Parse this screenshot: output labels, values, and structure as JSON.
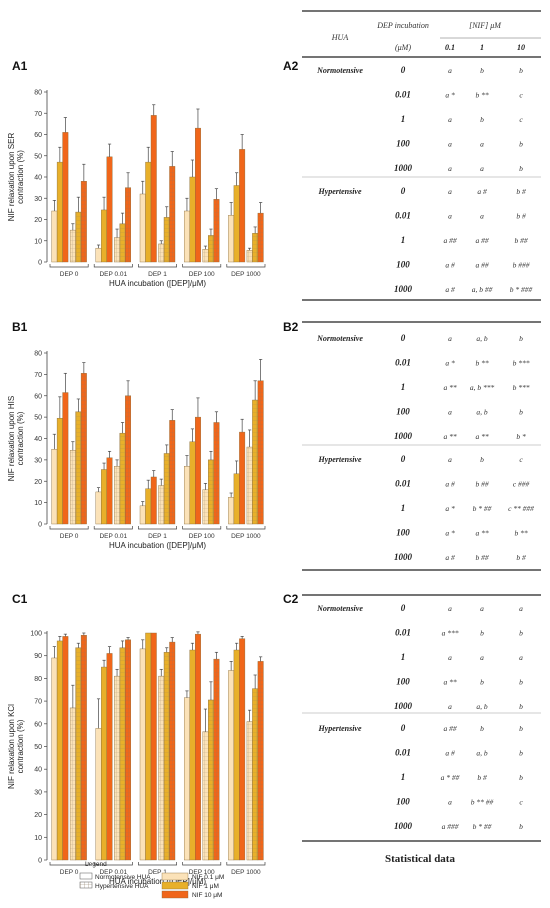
{
  "charts": [
    {
      "panel": "A1",
      "chart_data": {
        "type": "bar",
        "title": "",
        "ylabel": "NIF relaxation upon SER contraction (%)",
        "ylabel_lines": [
          "NIF relaxation upon SER",
          "contraction (%)"
        ],
        "xlabel": "HUA incubation ([DEP]/μM)",
        "categories": [
          "DEP 0",
          "DEP 0.01",
          "DEP 1",
          "DEP 100",
          "DEP 1000"
        ],
        "ylim": [
          0,
          80
        ],
        "yticks": [
          0,
          10,
          20,
          30,
          40,
          50,
          60,
          70,
          80
        ],
        "series": [
          {
            "group": "Normotensive HUA",
            "nif": "NIF 0.1 μM",
            "values": [
              24,
              6.5,
              32,
              24,
              22
            ],
            "errors": [
              5,
              1.5,
              6,
              6,
              6
            ]
          },
          {
            "group": "Normotensive HUA",
            "nif": "NIF 1 μM",
            "values": [
              47,
              24.5,
              47,
              40,
              36
            ],
            "errors": [
              7,
              6,
              7,
              8,
              6
            ]
          },
          {
            "group": "Normotensive HUA",
            "nif": "NIF 10 μM",
            "values": [
              61,
              49.5,
              69,
              63,
              53
            ],
            "errors": [
              7,
              6,
              5,
              9,
              7
            ]
          },
          {
            "group": "Hypertensive HUA",
            "nif": "NIF 0.1 μM",
            "values": [
              15,
              11.5,
              8.5,
              6,
              5.5
            ],
            "errors": [
              3,
              4,
              1.5,
              1.5,
              1
            ]
          },
          {
            "group": "Hypertensive HUA",
            "nif": "NIF 1 μM",
            "values": [
              23.5,
              18,
              21,
              12.5,
              13.5
            ],
            "errors": [
              7,
              5,
              5,
              3,
              3
            ]
          },
          {
            "group": "Hypertensive HUA",
            "nif": "NIF 10 μM",
            "values": [
              38,
              35,
              45,
              29.5,
              23
            ],
            "errors": [
              8,
              7,
              7,
              5,
              5
            ]
          }
        ]
      }
    },
    {
      "panel": "B1",
      "chart_data": {
        "type": "bar",
        "title": "",
        "ylabel": "NIF relaxation upon HIS contraction (%)",
        "ylabel_lines": [
          "NIF relaxation upon HIS",
          "contraction (%)"
        ],
        "xlabel": "HUA incubation ([DEP]/μM)",
        "categories": [
          "DEP 0",
          "DEP 0.01",
          "DEP 1",
          "DEP 100",
          "DEP 1000"
        ],
        "ylim": [
          0,
          80
        ],
        "yticks": [
          0,
          10,
          20,
          30,
          40,
          50,
          60,
          70,
          80
        ],
        "series": [
          {
            "group": "Normotensive HUA",
            "nif": "NIF 0.1 μM",
            "values": [
              35,
              15,
              8.5,
              27,
              12.5
            ],
            "errors": [
              7,
              2,
              2,
              5,
              2
            ]
          },
          {
            "group": "Normotensive HUA",
            "nif": "NIF 1 μM",
            "values": [
              49.5,
              25.5,
              16.5,
              38.5,
              23.5
            ],
            "errors": [
              10,
              3,
              4,
              6,
              6
            ]
          },
          {
            "group": "Normotensive HUA",
            "nif": "NIF 10 μM",
            "values": [
              61.5,
              31,
              22,
              50,
              43
            ],
            "errors": [
              9,
              3,
              3,
              9,
              6
            ]
          },
          {
            "group": "Hypertensive HUA",
            "nif": "NIF 0.1 μM",
            "values": [
              34.5,
              27,
              18,
              16,
              36
            ],
            "errors": [
              4,
              3,
              3,
              3,
              8
            ]
          },
          {
            "group": "Hypertensive HUA",
            "nif": "NIF 1 μM",
            "values": [
              52.5,
              42.5,
              33,
              30,
              58
            ],
            "errors": [
              6,
              5,
              4,
              4,
              9
            ]
          },
          {
            "group": "Hypertensive HUA",
            "nif": "NIF 10 μM",
            "values": [
              70.5,
              60,
              48.5,
              47.5,
              67
            ],
            "errors": [
              5,
              7,
              5,
              5,
              10
            ]
          }
        ]
      }
    },
    {
      "panel": "C1",
      "chart_data": {
        "type": "bar",
        "title": "",
        "ylabel": "NIF relaxation upon KCl contraction (%)",
        "ylabel_lines": [
          "NIF relaxation upon KCl",
          "contraction (%)"
        ],
        "xlabel": "HUA incubation ([DEP]/μM)",
        "categories": [
          "DEP 0",
          "DEP 0.01",
          "DEP 1",
          "DEP 100",
          "DEP 1000"
        ],
        "ylim": [
          0,
          100
        ],
        "yticks": [
          0,
          10,
          20,
          30,
          40,
          50,
          60,
          70,
          80,
          90,
          100
        ],
        "series": [
          {
            "group": "Normotensive HUA",
            "nif": "NIF 0.1 μM",
            "values": [
              89,
              58,
              93,
              71.5,
              83.5
            ],
            "errors": [
              5,
              13,
              4,
              3,
              4
            ]
          },
          {
            "group": "Normotensive HUA",
            "nif": "NIF 1 μM",
            "values": [
              96.5,
              85,
              100,
              92.5,
              92.5
            ],
            "errors": [
              2,
              3,
              0,
              3,
              3
            ]
          },
          {
            "group": "Normotensive HUA",
            "nif": "NIF 10 μM",
            "values": [
              98.5,
              91,
              100,
              99.5,
              97.5
            ],
            "errors": [
              1,
              3,
              0,
              1,
              1
            ]
          },
          {
            "group": "Hypertensive HUA",
            "nif": "NIF 0.1 μM",
            "values": [
              67,
              81,
              81,
              56.5,
              61
            ],
            "errors": [
              10,
              3,
              3,
              10,
              5
            ]
          },
          {
            "group": "Hypertensive HUA",
            "nif": "NIF 1 μM",
            "values": [
              93.5,
              93.5,
              91.5,
              70.5,
              75.5
            ],
            "errors": [
              2,
              3,
              2,
              8,
              6
            ]
          },
          {
            "group": "Hypertensive HUA",
            "nif": "NIF 10 μM",
            "values": [
              99,
              97,
              96,
              88.5,
              87.5
            ],
            "errors": [
              1,
              1,
              2,
              3,
              2
            ]
          }
        ]
      }
    }
  ],
  "legend": {
    "title": "Legend",
    "groups": [
      "Normotensive HUA",
      "Hypertensive HUA"
    ],
    "nif": [
      "NIF 0.1 μM",
      "NIF 1 μM",
      "NIF 10 μM"
    ]
  },
  "colors": {
    "nif_0_1": "#fbe2b8",
    "nif_1": "#e8b02a",
    "nif_10": "#f0661a",
    "axis": "#444444",
    "error": "#444444"
  },
  "tables": [
    {
      "panel": "A2",
      "header": {
        "hua": "HUA",
        "dep": "DEP incubation",
        "dep_unit": "(μM)",
        "nif": "[NIF] μM",
        "nif_cols": [
          "0.1",
          "1",
          "10"
        ]
      },
      "sections": [
        {
          "group": "Normotensive",
          "rows": [
            {
              "dep": "0",
              "cells": [
                "a",
                "b",
                "b"
              ]
            },
            {
              "dep": "0.01",
              "cells": [
                "a *",
                "b **",
                "c"
              ]
            },
            {
              "dep": "1",
              "cells": [
                "a",
                "b",
                "c"
              ]
            },
            {
              "dep": "100",
              "cells": [
                "a",
                "a",
                "b"
              ]
            },
            {
              "dep": "1000",
              "cells": [
                "a",
                "a",
                "b"
              ]
            }
          ]
        },
        {
          "group": "Hypertensive",
          "rows": [
            {
              "dep": "0",
              "cells": [
                "a",
                "a #",
                "b #"
              ]
            },
            {
              "dep": "0.01",
              "cells": [
                "a",
                "a",
                "b #"
              ]
            },
            {
              "dep": "1",
              "cells": [
                "a ##",
                "a ##",
                "b ##"
              ]
            },
            {
              "dep": "100",
              "cells": [
                "a #",
                "a ##",
                "b ###"
              ]
            },
            {
              "dep": "1000",
              "cells": [
                "a #",
                "a, b ##",
                "b * ###"
              ]
            }
          ]
        }
      ]
    },
    {
      "panel": "B2",
      "sections": [
        {
          "group": "Normotensive",
          "rows": [
            {
              "dep": "0",
              "cells": [
                "a",
                "a, b",
                "b"
              ]
            },
            {
              "dep": "0.01",
              "cells": [
                "a *",
                "b **",
                "b ***"
              ]
            },
            {
              "dep": "1",
              "cells": [
                "a **",
                "a, b ***",
                "b ***"
              ]
            },
            {
              "dep": "100",
              "cells": [
                "a",
                "a, b",
                "b"
              ]
            },
            {
              "dep": "1000",
              "cells": [
                "a **",
                "a **",
                "b *"
              ]
            }
          ]
        },
        {
          "group": "Hypertensive",
          "rows": [
            {
              "dep": "0",
              "cells": [
                "a",
                "b",
                "c"
              ]
            },
            {
              "dep": "0.01",
              "cells": [
                "a #",
                "b ##",
                "c ###"
              ]
            },
            {
              "dep": "1",
              "cells": [
                "a *",
                "b * ##",
                "c ** ###"
              ]
            },
            {
              "dep": "100",
              "cells": [
                "a *",
                "a **",
                "b **"
              ]
            },
            {
              "dep": "1000",
              "cells": [
                "a #",
                "b ##",
                "b #"
              ]
            }
          ]
        }
      ]
    },
    {
      "panel": "C2",
      "sections": [
        {
          "group": "Normotensive",
          "rows": [
            {
              "dep": "0",
              "cells": [
                "a",
                "a",
                "a"
              ]
            },
            {
              "dep": "0.01",
              "cells": [
                "a ***",
                "b",
                "b"
              ]
            },
            {
              "dep": "1",
              "cells": [
                "a",
                "a",
                "a"
              ]
            },
            {
              "dep": "100",
              "cells": [
                "a **",
                "b",
                "b"
              ]
            },
            {
              "dep": "1000",
              "cells": [
                "a",
                "a, b",
                "b"
              ]
            }
          ]
        },
        {
          "group": "Hypertensive",
          "rows": [
            {
              "dep": "0",
              "cells": [
                "a ##",
                "b",
                "b"
              ]
            },
            {
              "dep": "0.01",
              "cells": [
                "a #",
                "a, b",
                "b"
              ]
            },
            {
              "dep": "1",
              "cells": [
                "a * ##",
                "b #",
                "b"
              ]
            },
            {
              "dep": "100",
              "cells": [
                "a",
                "b ** ##",
                "c"
              ]
            },
            {
              "dep": "1000",
              "cells": [
                "a ###",
                "b * ##",
                "b"
              ]
            }
          ]
        }
      ]
    }
  ],
  "statistical_caption": "Statistical data"
}
